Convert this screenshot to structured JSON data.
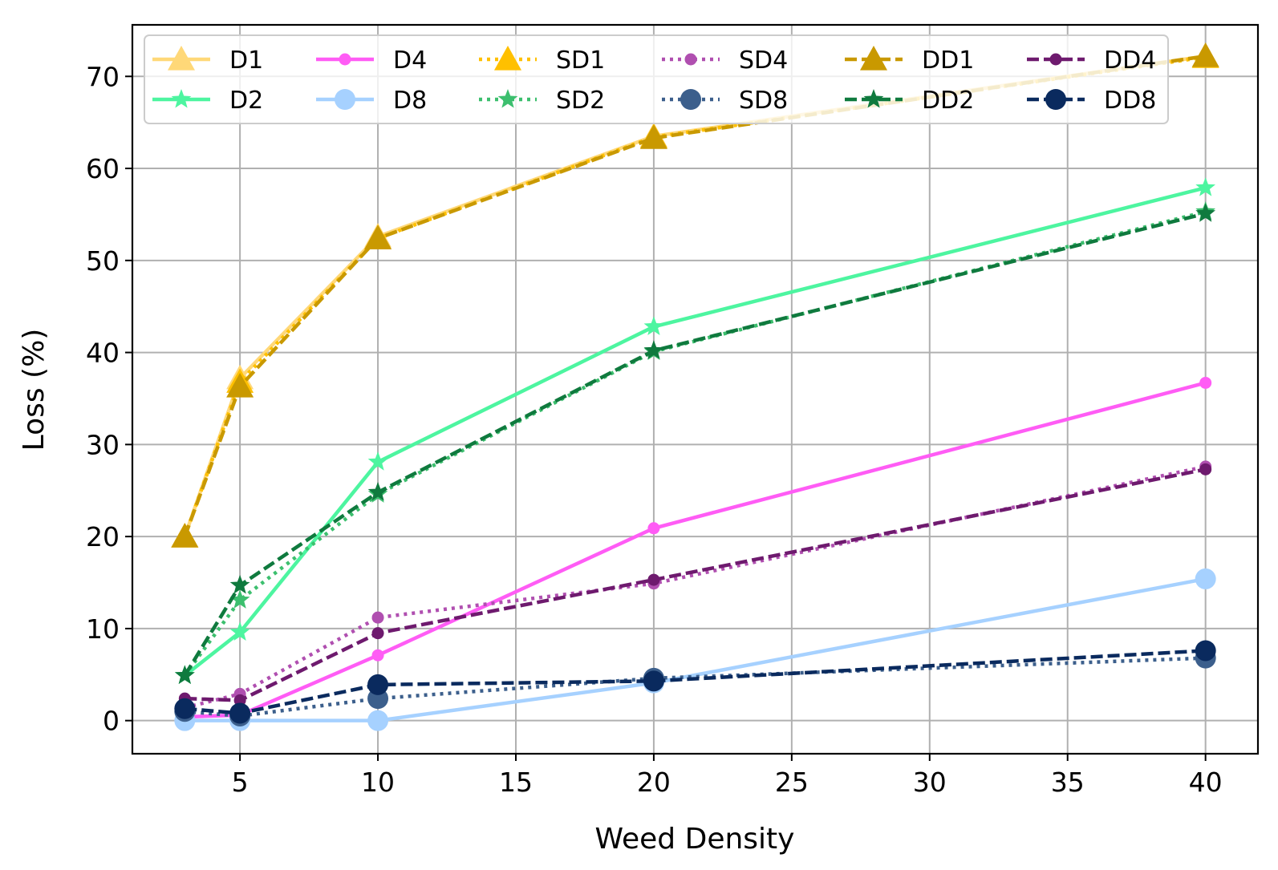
{
  "chart_data": {
    "type": "line",
    "title": "",
    "xlabel": "Weed Density",
    "ylabel": "Loss (%)",
    "xlim": [
      1.1,
      41.9
    ],
    "ylim": [
      -3.6,
      75.6
    ],
    "xticks": [
      5,
      10,
      15,
      20,
      25,
      30,
      35,
      40
    ],
    "yticks": [
      0,
      10,
      20,
      30,
      40,
      50,
      60,
      70
    ],
    "grid": true,
    "legend_placement": "top",
    "x": [
      3,
      5,
      10,
      20,
      40
    ],
    "series": [
      {
        "name": "D1",
        "values": [
          20.0,
          37.2,
          52.6,
          63.5,
          72.2
        ],
        "color": "#FFD878",
        "line": "solid",
        "marker": "triangle"
      },
      {
        "name": "D2",
        "values": [
          4.9,
          9.6,
          28.1,
          42.8,
          57.9
        ],
        "color": "#4DF5A0",
        "line": "solid",
        "marker": "star"
      },
      {
        "name": "D4",
        "values": [
          0.4,
          0.6,
          7.1,
          20.9,
          36.7
        ],
        "color": "#FF5CF5",
        "line": "solid",
        "marker": "dot-small"
      },
      {
        "name": "D8",
        "values": [
          0.0,
          0.0,
          0.0,
          4.1,
          15.4
        ],
        "color": "#A6D1FF",
        "line": "solid",
        "marker": "circle"
      },
      {
        "name": "SD1",
        "values": [
          20.0,
          36.8,
          52.4,
          63.4,
          72.1
        ],
        "color": "#FFC000",
        "line": "dotted",
        "marker": "triangle"
      },
      {
        "name": "SD2",
        "values": [
          4.9,
          13.1,
          24.6,
          40.1,
          55.3
        ],
        "color": "#3CBF6E",
        "line": "dotted",
        "marker": "star"
      },
      {
        "name": "SD4",
        "values": [
          1.4,
          2.9,
          11.2,
          14.9,
          27.6
        ],
        "color": "#B04FB0",
        "line": "dotted",
        "marker": "dot-small"
      },
      {
        "name": "SD8",
        "values": [
          1.0,
          0.5,
          2.4,
          4.6,
          6.8
        ],
        "color": "#3C5F8C",
        "line": "dotted",
        "marker": "circle"
      },
      {
        "name": "DD1",
        "values": [
          20.0,
          36.3,
          52.4,
          63.3,
          72.2
        ],
        "color": "#C99900",
        "line": "dashed",
        "marker": "triangle"
      },
      {
        "name": "DD2",
        "values": [
          4.9,
          14.7,
          24.8,
          40.2,
          55.1
        ],
        "color": "#0F7A3E",
        "line": "dashed",
        "marker": "star"
      },
      {
        "name": "DD4",
        "values": [
          2.4,
          2.2,
          9.5,
          15.3,
          27.3
        ],
        "color": "#6E1A6E",
        "line": "dashed",
        "marker": "dot-small"
      },
      {
        "name": "DD8",
        "values": [
          1.3,
          0.8,
          3.9,
          4.3,
          7.6
        ],
        "color": "#0A2A5E",
        "line": "dashed",
        "marker": "circle"
      }
    ]
  }
}
